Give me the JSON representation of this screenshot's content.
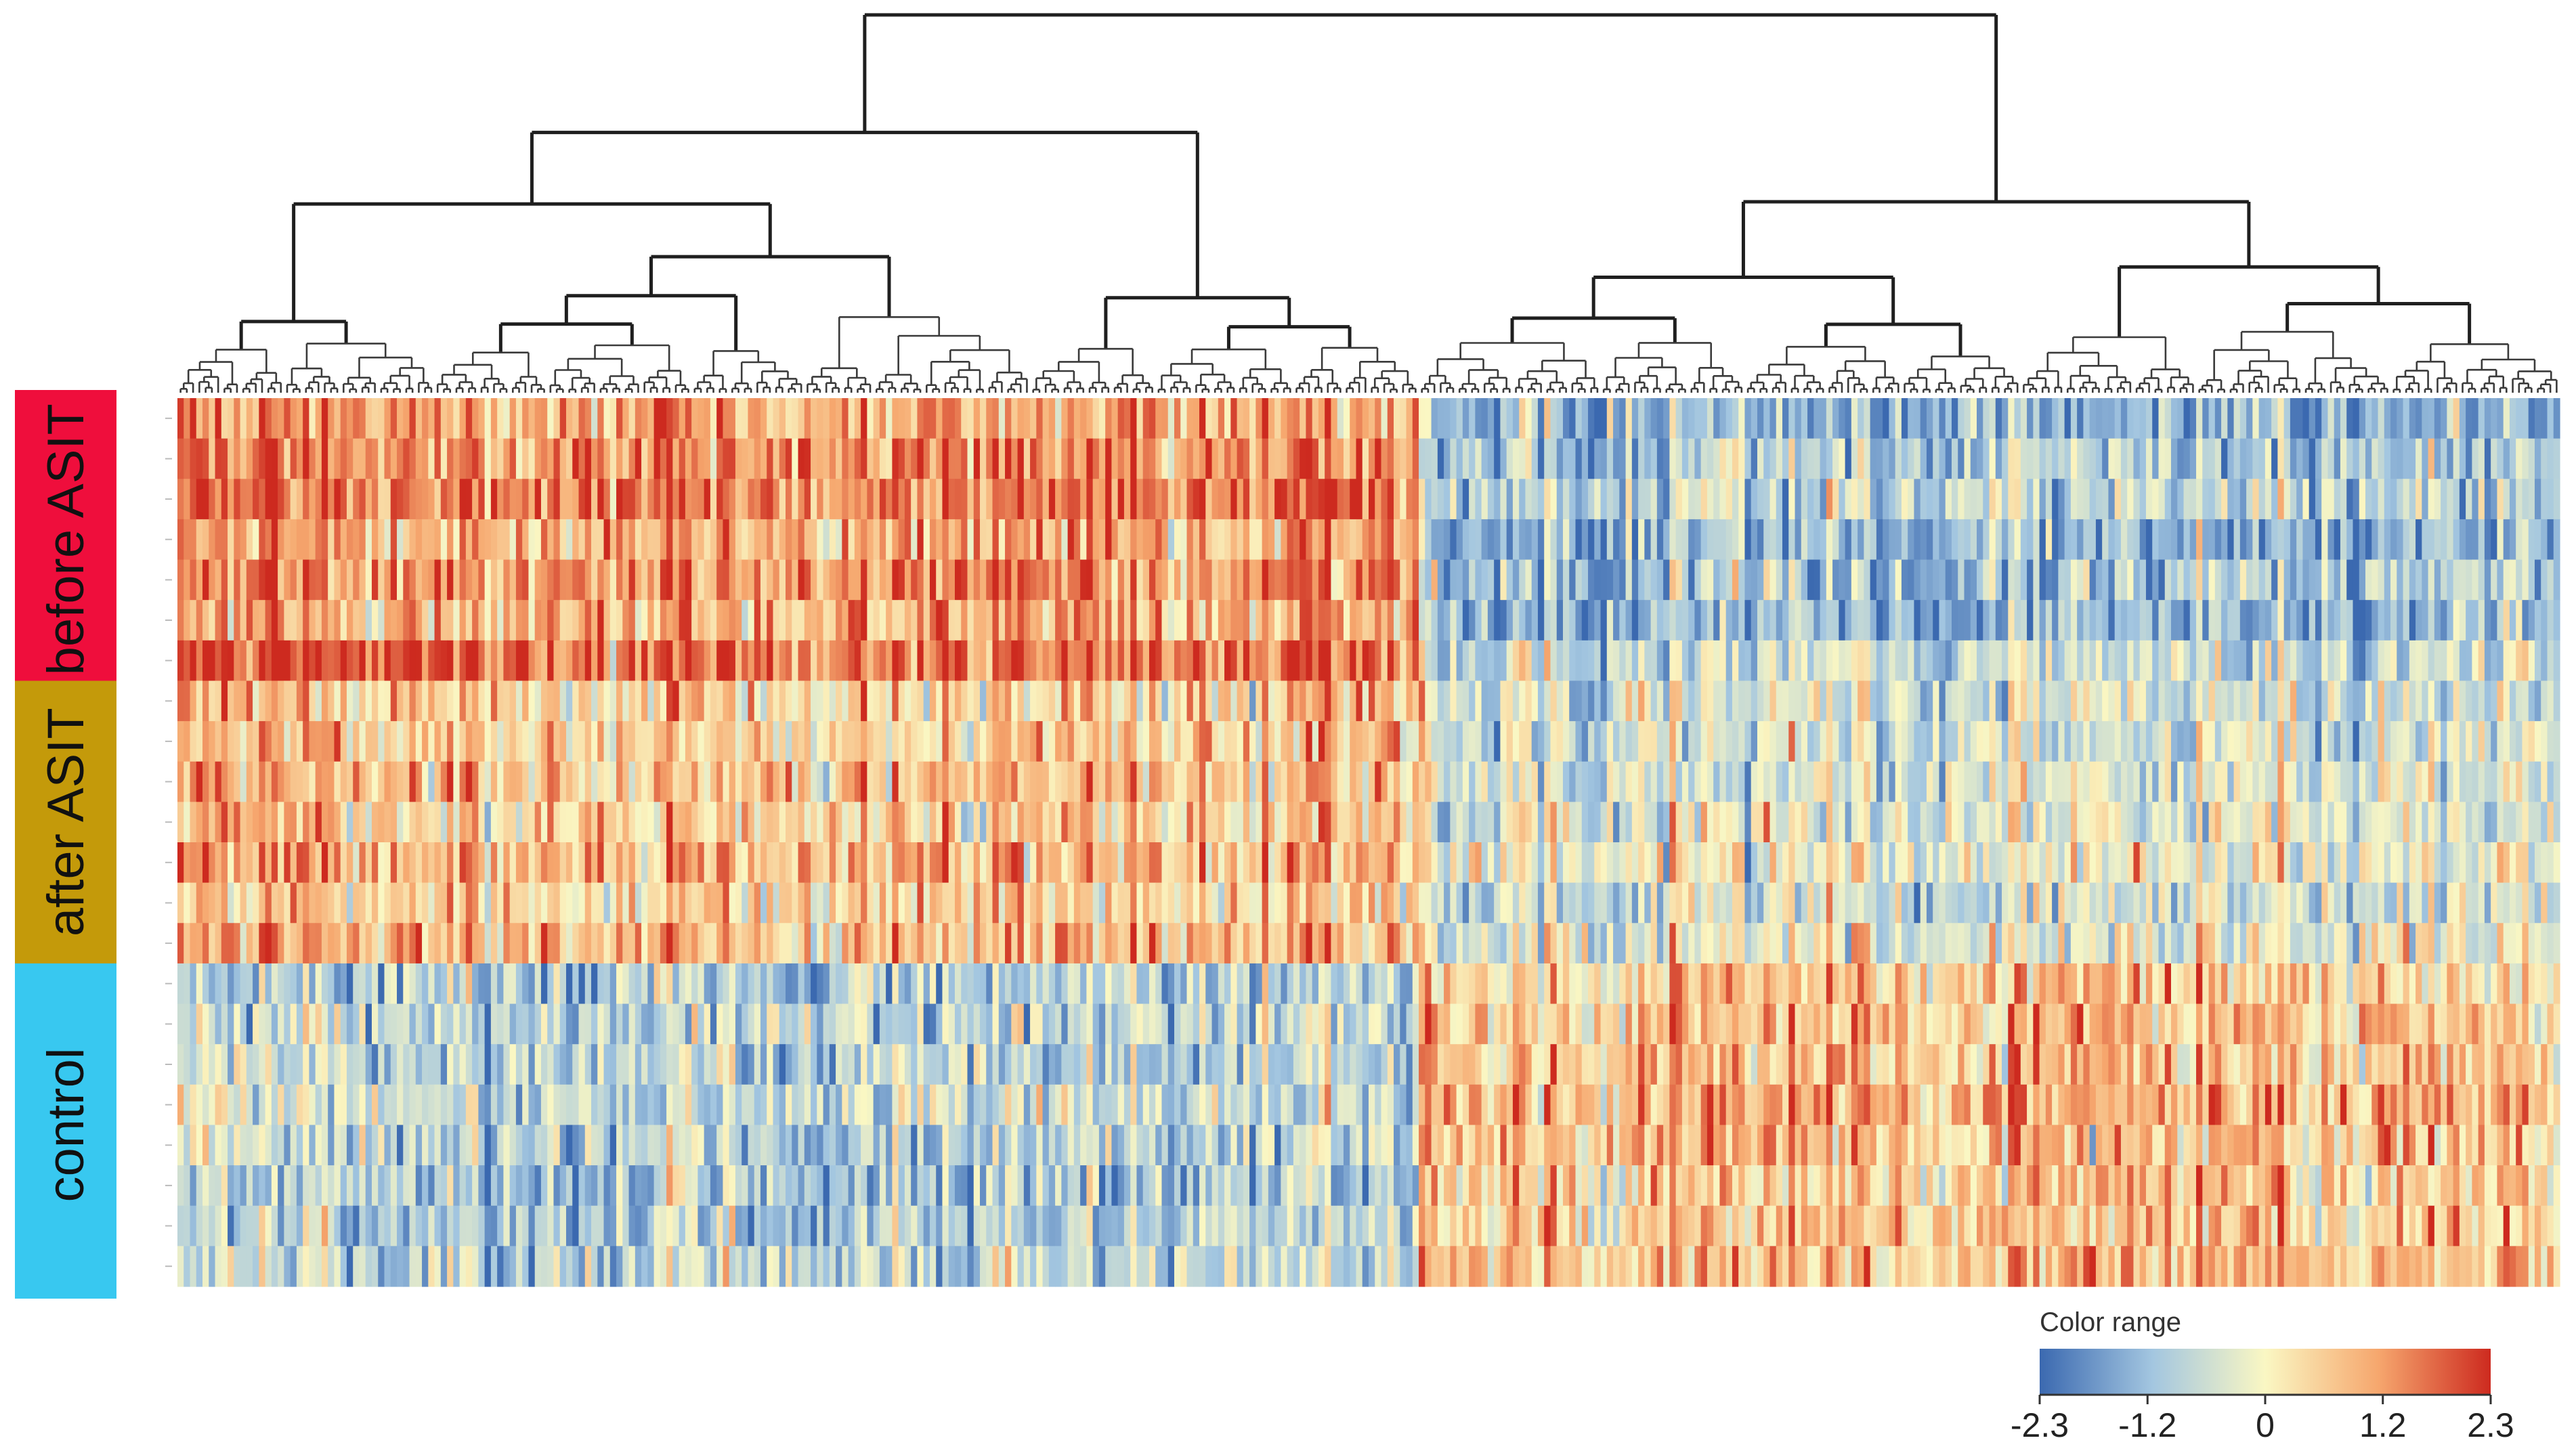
{
  "chart_data": {
    "type": "heatmap",
    "title": "",
    "xlabel": "",
    "ylabel": "",
    "n_columns": 380,
    "groups": [
      {
        "label": "before ASIT",
        "color": "#ef0e3c",
        "rows": 7
      },
      {
        "label": "after ASIT",
        "color": "#c49a0a",
        "rows": 7
      },
      {
        "label": "control",
        "color": "#38c8f0",
        "rows": 8
      }
    ],
    "column_clusters": [
      {
        "id": "left-cluster",
        "column_share": 0.52,
        "before_asit": 1.3,
        "after_asit": 0.9,
        "control": -0.8
      },
      {
        "id": "right-cluster",
        "column_share": 0.48,
        "before_asit": -1.1,
        "after_asit": -0.2,
        "control": 0.7
      }
    ],
    "color_scale": {
      "title": "Color range",
      "min": -2.3,
      "max": 2.3,
      "ticks": [
        "-2.3",
        "-1.2",
        "0",
        "1.2",
        "2.3"
      ],
      "colors": [
        "#3b69b0",
        "#a3c6e0",
        "#faf7c3",
        "#f6a76e",
        "#cd2a1f"
      ]
    },
    "dendrogram": {
      "position": "top",
      "line_color": "#222222"
    }
  }
}
